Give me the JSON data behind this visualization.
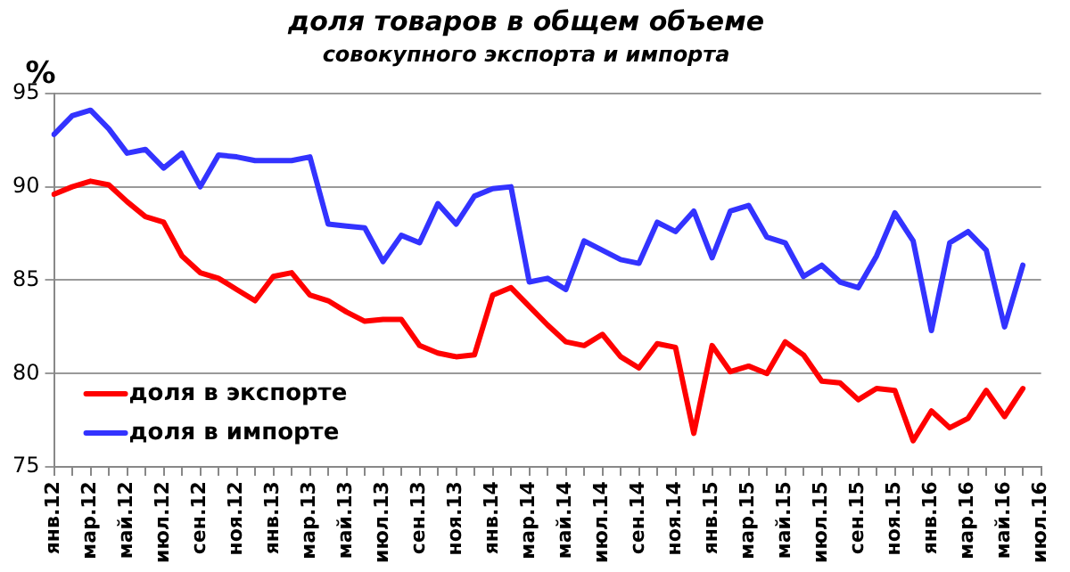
{
  "chart_data": {
    "type": "line",
    "title": "доля товаров в общем объеме",
    "subtitle": "совокупного экспорта и импорта",
    "ylabel": "%",
    "categories": [
      "янв.12",
      null,
      "мар.12",
      null,
      "май.12",
      null,
      "июл.12",
      null,
      "сен.12",
      null,
      "ноя.12",
      null,
      "янв.13",
      null,
      "мар.13",
      null,
      "май.13",
      null,
      "июл.13",
      null,
      "сен.13",
      null,
      "ноя.13",
      null,
      "янв.14",
      null,
      "мар.14",
      null,
      "май.14",
      null,
      "июл.14",
      null,
      "сен.14",
      null,
      "ноя.14",
      null,
      "янв.15",
      null,
      "мар.15",
      null,
      "май.15",
      null,
      "июл.15",
      null,
      "сен.15",
      null,
      "ноя.15",
      null,
      "янв.16",
      null,
      "мар.16",
      null,
      "май.16",
      null,
      "июл.16"
    ],
    "series": [
      {
        "name": "доля в экспорте",
        "color": "#ff0000",
        "values": [
          89.6,
          90.0,
          90.3,
          90.1,
          89.2,
          88.4,
          88.1,
          86.3,
          85.4,
          85.1,
          84.5,
          83.9,
          85.2,
          85.4,
          84.2,
          83.9,
          83.3,
          82.8,
          82.9,
          82.9,
          81.5,
          81.1,
          80.9,
          81.0,
          84.2,
          84.6,
          83.6,
          82.6,
          81.7,
          81.5,
          82.1,
          80.9,
          80.3,
          81.6,
          81.4,
          76.8,
          81.5,
          80.1,
          80.4,
          80.0,
          81.7,
          81.0,
          79.6,
          79.5,
          78.6,
          79.2,
          79.1,
          76.4,
          78.0,
          77.1,
          77.6,
          79.1,
          77.7,
          79.2,
          null
        ]
      },
      {
        "name": "доля в импорте",
        "color": "#3333ff",
        "values": [
          92.8,
          93.8,
          94.1,
          93.1,
          91.8,
          92.0,
          91.0,
          91.8,
          90.0,
          91.7,
          91.6,
          91.4,
          91.4,
          91.4,
          91.6,
          88.0,
          87.9,
          87.8,
          86.0,
          87.4,
          87.0,
          89.1,
          88.0,
          89.5,
          89.9,
          90.0,
          84.9,
          85.1,
          84.5,
          87.1,
          86.6,
          86.1,
          85.9,
          88.1,
          87.6,
          88.7,
          86.2,
          88.7,
          89.0,
          87.3,
          87.0,
          85.2,
          85.8,
          84.9,
          84.6,
          86.3,
          88.6,
          87.1,
          82.3,
          87.0,
          87.6,
          86.6,
          82.5,
          85.8,
          null
        ]
      }
    ],
    "ylim": [
      75,
      95
    ],
    "yticks": [
      75,
      80,
      85,
      90,
      95
    ],
    "grid": "y",
    "legend": "bottom left",
    "marker": "none",
    "line_style": "solid"
  }
}
